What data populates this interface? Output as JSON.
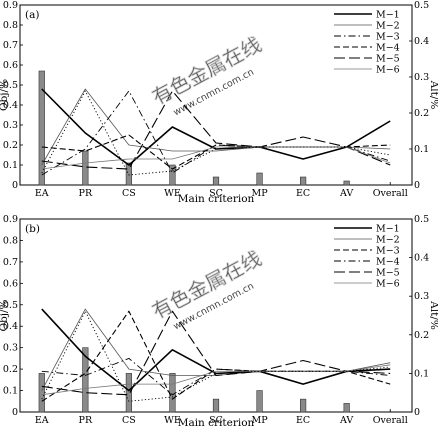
{
  "watermark": {
    "cn_text": "有色金属在线",
    "url_text": "www.cnmn.com.cn",
    "color": "#b8b8b8"
  },
  "chart_data": [
    {
      "type": "line",
      "panel_label": "(a)",
      "categories": [
        "EA",
        "PR",
        "CS",
        "WE",
        "SC",
        "MP",
        "EC",
        "AV",
        "Overall"
      ],
      "xlabel": "Main criterion",
      "ylabel": "Obj/%",
      "y2label": "Alt/%",
      "ylim": [
        0,
        0.9
      ],
      "y2lim": [
        0,
        0.5
      ],
      "yticks": [
        "0",
        "0.1",
        "0.2",
        "0.3",
        "0.4",
        "0.5",
        "0.6",
        "0.7",
        "0.8",
        "0.9"
      ],
      "y2ticks": [
        "0",
        "0.1",
        "0.2",
        "0.3",
        "0.4",
        "0.5"
      ],
      "legend_position": "top-right",
      "bars": {
        "axis": "left",
        "values": [
          0.57,
          0.17,
          0.11,
          0.1,
          0.04,
          0.06,
          0.04,
          0.02,
          null
        ]
      },
      "series": [
        {
          "name": "M−1",
          "style": "solid",
          "width": 1.6,
          "color": "#000000",
          "values": [
            0.48,
            0.26,
            0.1,
            0.29,
            0.18,
            0.19,
            0.13,
            0.19,
            0.32
          ]
        },
        {
          "name": "M−2",
          "style": "solid",
          "width": 0.8,
          "color": "#555555",
          "values": [
            0.1,
            0.48,
            0.2,
            0.17,
            0.17,
            0.19,
            0.19,
            0.19,
            0.18
          ]
        },
        {
          "name": "M−3",
          "style": "dash-dot",
          "width": 0.9,
          "color": "#000000",
          "values": [
            0.05,
            0.18,
            0.47,
            0.06,
            0.2,
            0.19,
            0.19,
            0.19,
            0.12
          ]
        },
        {
          "name": "M−4",
          "style": "dashed",
          "width": 1.1,
          "color": "#000000",
          "values": [
            0.19,
            0.17,
            0.25,
            0.08,
            0.2,
            0.19,
            0.19,
            0.19,
            0.2
          ]
        },
        {
          "name": "M−5",
          "style": "long-dash",
          "width": 1.1,
          "color": "#000000",
          "values": [
            0.12,
            0.09,
            0.08,
            0.47,
            0.21,
            0.19,
            0.24,
            0.19,
            0.1
          ]
        },
        {
          "name": "M−6",
          "style": "solid",
          "width": 0.8,
          "color": "#777777",
          "values": [
            0.08,
            0.11,
            0.13,
            0.13,
            0.19,
            0.19,
            0.19,
            0.19,
            0.11
          ]
        },
        {
          "name": "",
          "style": "dotted",
          "width": 0.9,
          "color": "#000000",
          "values": [
            0.06,
            0.47,
            0.05,
            0.07,
            0.18,
            0.19,
            0.19,
            0.19,
            0.15
          ]
        }
      ]
    },
    {
      "type": "line",
      "panel_label": "(b)",
      "categories": [
        "EA",
        "PR",
        "CS",
        "WE",
        "SC",
        "MP",
        "EC",
        "AV",
        "Overall"
      ],
      "xlabel": "Main criterion",
      "ylabel": "Obj/%",
      "y2label": "Alt/%",
      "ylim": [
        0,
        0.9
      ],
      "y2lim": [
        0,
        0.5
      ],
      "yticks": [
        "0",
        "0.1",
        "0.2",
        "0.3",
        "0.4",
        "0.5",
        "0.6",
        "0.7",
        "0.8",
        "0.9"
      ],
      "y2ticks": [
        "0",
        "0.1",
        "0.2",
        "0.3",
        "0.4",
        "0.5"
      ],
      "legend_position": "top-right",
      "bars": {
        "axis": "left",
        "values": [
          0.18,
          0.3,
          0.18,
          0.18,
          0.06,
          0.1,
          0.06,
          0.04,
          null
        ]
      },
      "series": [
        {
          "name": "M−1",
          "style": "solid",
          "width": 1.6,
          "color": "#000000",
          "values": [
            0.48,
            0.26,
            0.1,
            0.29,
            0.18,
            0.19,
            0.13,
            0.19,
            0.2
          ]
        },
        {
          "name": "M−2",
          "style": "solid",
          "width": 0.8,
          "color": "#555555",
          "values": [
            0.1,
            0.48,
            0.2,
            0.17,
            0.17,
            0.19,
            0.19,
            0.19,
            0.23
          ]
        },
        {
          "name": "M−3",
          "style": "dashed",
          "width": 1.1,
          "color": "#000000",
          "values": [
            0.05,
            0.18,
            0.47,
            0.06,
            0.2,
            0.19,
            0.19,
            0.19,
            0.13
          ]
        },
        {
          "name": "M−4",
          "style": "dash-dot",
          "width": 0.9,
          "color": "#000000",
          "values": [
            0.19,
            0.17,
            0.25,
            0.08,
            0.2,
            0.19,
            0.19,
            0.19,
            0.17
          ]
        },
        {
          "name": "M−5",
          "style": "long-dash",
          "width": 1.1,
          "color": "#000000",
          "values": [
            0.12,
            0.09,
            0.08,
            0.47,
            0.17,
            0.19,
            0.24,
            0.19,
            0.18
          ]
        },
        {
          "name": "M−6",
          "style": "solid",
          "width": 0.8,
          "color": "#777777",
          "values": [
            0.08,
            0.11,
            0.13,
            0.13,
            0.19,
            0.19,
            0.19,
            0.19,
            0.22
          ]
        },
        {
          "name": "",
          "style": "dotted",
          "width": 0.9,
          "color": "#000000",
          "values": [
            0.06,
            0.47,
            0.05,
            0.07,
            0.18,
            0.19,
            0.19,
            0.19,
            0.21
          ]
        }
      ]
    }
  ]
}
